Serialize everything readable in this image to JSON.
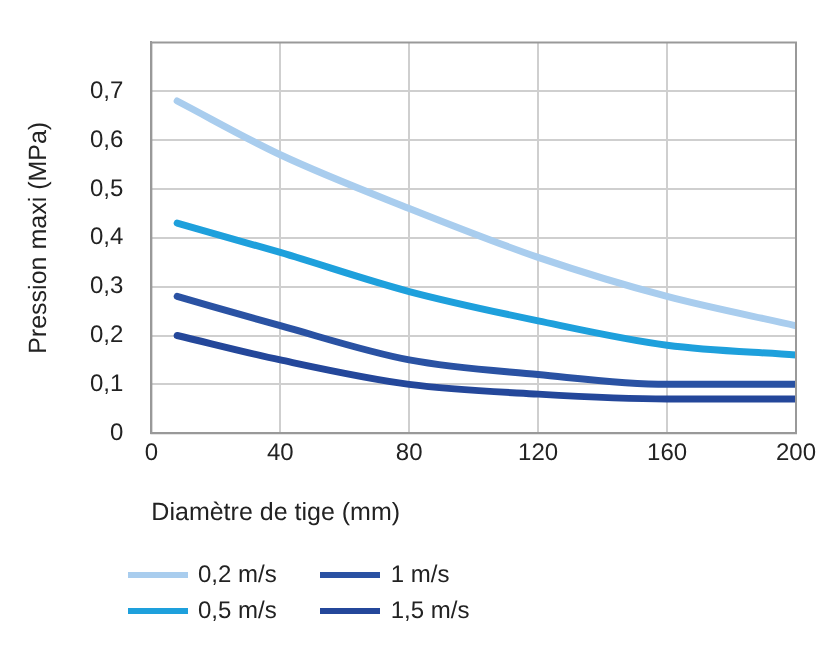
{
  "chart_data": {
    "type": "line",
    "xlabel": "Diamètre de tige (mm)",
    "ylabel": "Pression maxi (MPa)",
    "x": [
      8,
      40,
      80,
      120,
      160,
      200
    ],
    "series": [
      {
        "name": "0,2 m/s",
        "color": "#a9cdee",
        "values": [
          0.68,
          0.57,
          0.46,
          0.36,
          0.28,
          0.22
        ]
      },
      {
        "name": "0,5 m/s",
        "color": "#1ea0dc",
        "values": [
          0.43,
          0.37,
          0.29,
          0.23,
          0.18,
          0.16
        ]
      },
      {
        "name": "1 m/s",
        "color": "#2a52a3",
        "values": [
          0.28,
          0.22,
          0.15,
          0.12,
          0.1,
          0.1
        ]
      },
      {
        "name": "1,5 m/s",
        "color": "#24479a",
        "values": [
          0.2,
          0.15,
          0.1,
          0.08,
          0.07,
          0.07
        ]
      }
    ],
    "xlim": [
      0,
      200
    ],
    "xticks": [
      0,
      40,
      80,
      120,
      160,
      200
    ],
    "ylim": [
      0,
      0.8
    ],
    "yticks": [
      {
        "value": 0,
        "label": "0"
      },
      {
        "value": 0.1,
        "label": "0,1"
      },
      {
        "value": 0.2,
        "label": "0,2"
      },
      {
        "value": 0.3,
        "label": "0,3"
      },
      {
        "value": 0.4,
        "label": "0,4"
      },
      {
        "value": 0.5,
        "label": "0,5"
      },
      {
        "value": 0.6,
        "label": "0,6"
      },
      {
        "value": 0.7,
        "label": "0,7"
      }
    ],
    "grid": true,
    "legend": "bottom",
    "marker": "none",
    "line_style": "solid"
  }
}
